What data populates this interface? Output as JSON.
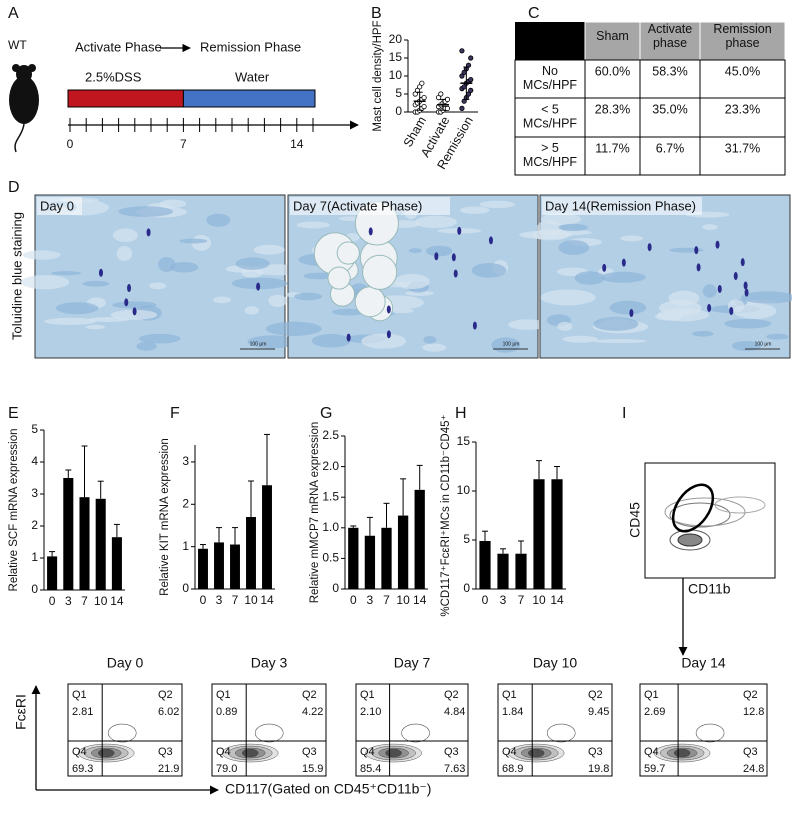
{
  "panel_labels": [
    "A",
    "B",
    "C",
    "D",
    "E",
    "F",
    "G",
    "H",
    "I"
  ],
  "timeline": {
    "mouse_label": "WT",
    "phase_1": "Activate Phase",
    "phase_2": "Remission Phase",
    "treatment_1": "2.5%DSS",
    "treatment_2": "Water",
    "ticks": [
      0,
      7,
      14
    ]
  },
  "table": {
    "header": [
      "Sham",
      "Activate phase",
      "Remission phase"
    ],
    "rows": [
      {
        "label": "No MCs/HPF",
        "cells": [
          "60.0%",
          "58.3%",
          "45.0%"
        ]
      },
      {
        "label": "< 5 MCs/HPF",
        "cells": [
          "28.3%",
          "35.0%",
          "23.3%"
        ]
      },
      {
        "label": "> 5 MCs/HPF",
        "cells": [
          "11.7%",
          "6.7%",
          "31.7%"
        ]
      }
    ]
  },
  "staining": {
    "y_label": "Toluidine blue staining",
    "scale_bar": "100 μm",
    "images": [
      "Day 0",
      "Day 7(Activate Phase)",
      "Day 14(Remission Phase)"
    ]
  },
  "chart_data": [
    {
      "type": "dot",
      "y_label": "Mast cell density/HPF",
      "categories": [
        "Sham",
        "Activate",
        "Remission"
      ],
      "values": [
        3,
        2,
        8
      ],
      "errors": [
        2.5,
        1.5,
        4.5
      ],
      "colors": [
        "#ffffff",
        "#ffffff",
        "#3b3560"
      ],
      "points": [
        [
          0,
          0,
          0.5,
          1,
          1.5,
          2,
          2.5,
          3,
          3.5,
          4,
          5,
          6,
          7,
          8
        ],
        [
          0,
          0,
          0.5,
          1,
          1,
          1.5,
          2,
          2.5,
          3,
          3.5,
          4,
          5
        ],
        [
          1,
          3,
          4,
          5,
          6,
          6.5,
          7,
          8,
          8.5,
          9,
          10,
          11,
          12,
          13,
          15,
          17
        ]
      ],
      "ylim": [
        0,
        20
      ],
      "yticks": [
        0,
        5,
        10,
        15,
        20
      ]
    },
    {
      "type": "bar",
      "y_label": "Relative SCF mRNA expression",
      "categories": [
        "0",
        "3",
        "7",
        "10",
        "14"
      ],
      "values": [
        1.05,
        3.5,
        2.9,
        2.85,
        1.65
      ],
      "errors": [
        0.15,
        0.25,
        1.6,
        0.55,
        0.4
      ],
      "color": "#000000",
      "ylim": [
        0,
        5
      ],
      "yticks": [
        0,
        1,
        2,
        3,
        4,
        5
      ]
    },
    {
      "type": "bar",
      "y_label": "Relative KIT mRNA expression",
      "categories": [
        "0",
        "3",
        "7",
        "10",
        "14"
      ],
      "values": [
        0.95,
        1.1,
        1.05,
        1.7,
        2.45
      ],
      "errors": [
        0.1,
        0.35,
        0.4,
        0.85,
        1.2
      ],
      "color": "#000000",
      "ylim": [
        0,
        3.4
      ],
      "yticks": [
        0,
        1,
        2,
        3
      ]
    },
    {
      "type": "bar",
      "y_label": "Relative mMCP7 mRNA expression",
      "categories": [
        "0",
        "3",
        "7",
        "10",
        "14"
      ],
      "values": [
        1.0,
        0.87,
        1.0,
        1.2,
        1.62
      ],
      "errors": [
        0.03,
        0.3,
        0.4,
        0.6,
        0.4
      ],
      "color": "#000000",
      "ylim": [
        0,
        2.5
      ],
      "yticks": [
        0,
        0.5,
        {
          "value": 1,
          "label": "1.0"
        },
        1.5,
        {
          "value": 2,
          "label": "2.0"
        },
        2.5
      ]
    },
    {
      "type": "bar",
      "y_label": "%CD117⁺FcεRI⁺MCs in CD11b⁻CD45⁺",
      "categories": [
        "0",
        "3",
        "7",
        "10",
        "14"
      ],
      "values": [
        4.9,
        3.6,
        3.6,
        11.2,
        11.2
      ],
      "errors": [
        1.0,
        0.5,
        1.3,
        1.9,
        1.3
      ],
      "color": "#000000",
      "ylim": [
        0,
        15
      ],
      "yticks": [
        0,
        5,
        10,
        15
      ]
    }
  ],
  "gate": {
    "y_label": "CD45",
    "x_label": "CD11b"
  },
  "flow": {
    "y_label": "FcεRI",
    "x_label": "CD117(Gated on CD45⁺CD11b⁻)",
    "panels": [
      {
        "title": "Day 0",
        "quadrants": [
          {
            "name": "Q1",
            "value": "2.81"
          },
          {
            "name": "Q2",
            "value": "6.02"
          },
          {
            "name": "Q3",
            "value": "21.9"
          },
          {
            "name": "Q4",
            "value": "69.3"
          }
        ]
      },
      {
        "title": "Day 3",
        "quadrants": [
          {
            "name": "Q1",
            "value": "0.89"
          },
          {
            "name": "Q2",
            "value": "4.22"
          },
          {
            "name": "Q3",
            "value": "15.9"
          },
          {
            "name": "Q4",
            "value": "79.0"
          }
        ]
      },
      {
        "title": "Day 7",
        "quadrants": [
          {
            "name": "Q1",
            "value": "2.10"
          },
          {
            "name": "Q2",
            "value": "4.84"
          },
          {
            "name": "Q3",
            "value": "7.63"
          },
          {
            "name": "Q4",
            "value": "85.4"
          }
        ]
      },
      {
        "title": "Day 10",
        "quadrants": [
          {
            "name": "Q1",
            "value": "1.84"
          },
          {
            "name": "Q2",
            "value": "9.45"
          },
          {
            "name": "Q3",
            "value": "19.8"
          },
          {
            "name": "Q4",
            "value": "68.9"
          }
        ]
      },
      {
        "title": "Day 14",
        "quadrants": [
          {
            "name": "Q1",
            "value": "2.69"
          },
          {
            "name": "Q2",
            "value": "12.8"
          },
          {
            "name": "Q3",
            "value": "24.8"
          },
          {
            "name": "Q4",
            "value": "59.7"
          }
        ]
      }
    ]
  }
}
